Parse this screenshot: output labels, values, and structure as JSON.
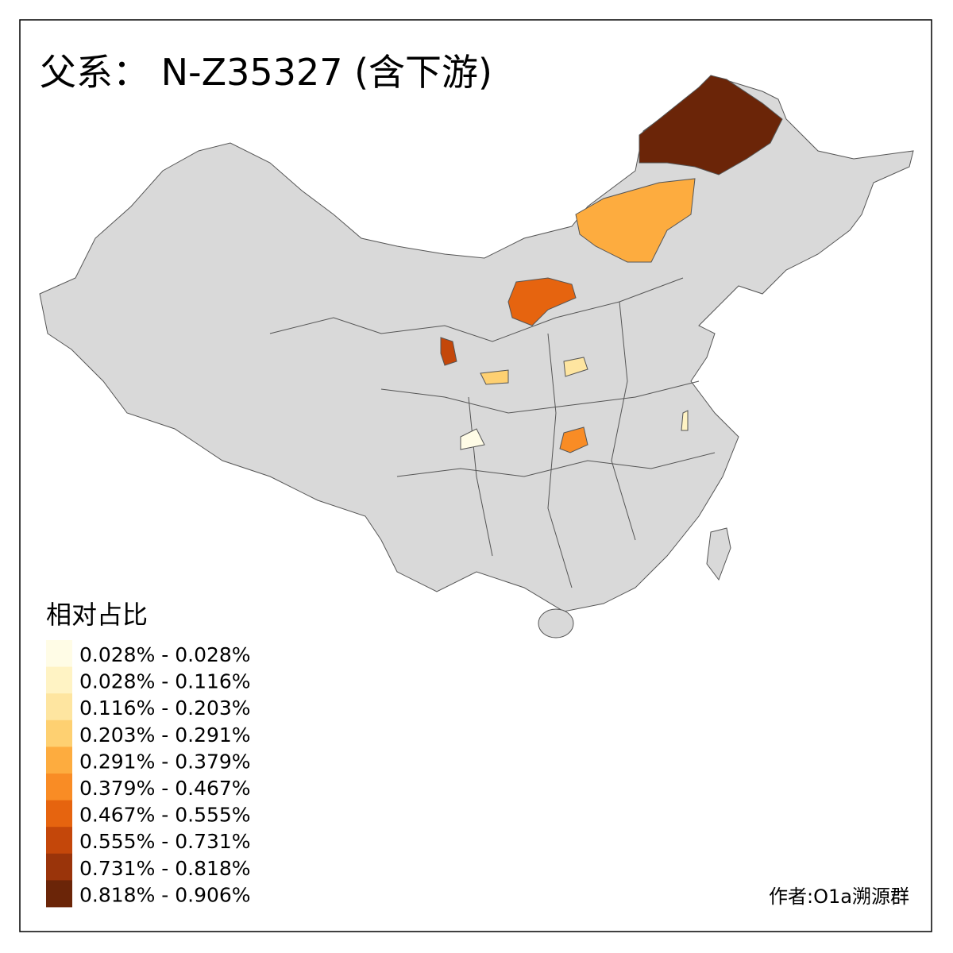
{
  "title": "父系： N-Z35327 (含下游)",
  "legend": {
    "title": "相对占比",
    "items": [
      {
        "label": "0.028% - 0.028%",
        "color": "#fffce6"
      },
      {
        "label": "0.028% - 0.116%",
        "color": "#fff3c4"
      },
      {
        "label": "0.116% - 0.203%",
        "color": "#fee5a0"
      },
      {
        "label": "0.203% - 0.291%",
        "color": "#fed071"
      },
      {
        "label": "0.291% - 0.379%",
        "color": "#fdac3f"
      },
      {
        "label": "0.379% - 0.467%",
        "color": "#f98c25"
      },
      {
        "label": "0.467% - 0.555%",
        "color": "#e6640f"
      },
      {
        "label": "0.555% - 0.731%",
        "color": "#c4470a"
      },
      {
        "label": "0.731% - 0.818%",
        "color": "#9a340a"
      },
      {
        "label": "0.818% - 0.906%",
        "color": "#6b2508"
      }
    ]
  },
  "credit": "作者:O1a溯源群"
}
